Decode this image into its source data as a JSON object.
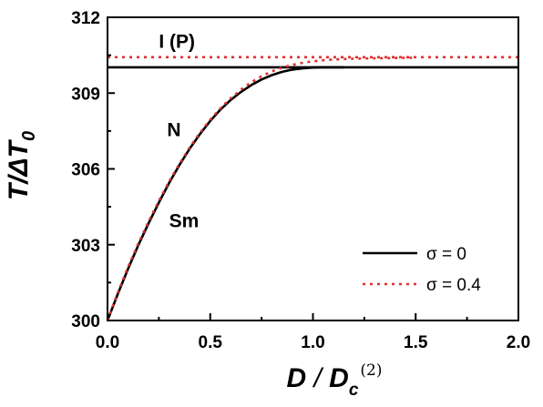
{
  "chart_data": {
    "type": "line",
    "xlabel": {
      "main": "D",
      "sep": " / ",
      "denom": "D",
      "sub": "c",
      "sup": "(2)"
    },
    "ylabel": {
      "main": "T/ΔT",
      "sub": "0"
    },
    "xlim": [
      0,
      2
    ],
    "ylim": [
      300,
      312
    ],
    "x_ticks": [
      0,
      0.5,
      1,
      1.5,
      2
    ],
    "x_tick_labels": [
      "0.0",
      "0.5",
      "1.0",
      "1.5",
      "2.0"
    ],
    "y_ticks": [
      300,
      303,
      306,
      309,
      312
    ],
    "y_tick_labels": [
      "300",
      "303",
      "306",
      "309",
      "312"
    ],
    "grid": false,
    "legend_position": "bottom-right",
    "region_labels": [
      {
        "text": "I (P)",
        "x": 0.25,
        "y": 310.8
      },
      {
        "text": "N",
        "x": 0.29,
        "y": 307.3
      },
      {
        "text": "Sm",
        "x": 0.3,
        "y": 303.7
      }
    ],
    "series": [
      {
        "name": "σ = 0",
        "style": "solid",
        "color": "#000000",
        "x": [
          0,
          0.05,
          0.1,
          0.15,
          0.2,
          0.25,
          0.3,
          0.35,
          0.4,
          0.45,
          0.5,
          0.55,
          0.6,
          0.65,
          0.7,
          0.75,
          0.8,
          0.85,
          0.9,
          0.95,
          1.0,
          1.05,
          1.1,
          1.15
        ],
        "y": [
          300.0,
          301.05,
          302.05,
          302.98,
          303.85,
          304.67,
          305.44,
          306.15,
          306.8,
          307.38,
          307.9,
          308.35,
          308.73,
          309.05,
          309.32,
          309.54,
          309.71,
          309.84,
          309.93,
          309.98,
          310.01,
          310.02,
          310.02,
          310.02
        ]
      },
      {
        "name": "σ = 0.4",
        "style": "dotted",
        "color": "#e03030",
        "x": [
          0,
          0.05,
          0.1,
          0.15,
          0.2,
          0.25,
          0.3,
          0.35,
          0.4,
          0.45,
          0.5,
          0.55,
          0.6,
          0.65,
          0.7,
          0.75,
          0.8,
          0.85,
          0.9,
          0.95,
          1.0,
          1.05,
          1.1,
          1.15,
          1.2,
          1.3,
          1.4,
          1.5
        ],
        "y": [
          300.0,
          301.1,
          302.12,
          303.05,
          303.92,
          304.74,
          305.5,
          306.2,
          306.85,
          307.43,
          307.95,
          308.4,
          308.8,
          309.14,
          309.43,
          309.67,
          309.86,
          310.01,
          310.12,
          310.2,
          310.26,
          310.3,
          310.33,
          310.35,
          310.36,
          310.38,
          310.39,
          310.4
        ]
      }
    ],
    "phase_boundaries": [
      {
        "series": "σ = 0",
        "y": 310.02,
        "x_start": 0,
        "x_end": 2,
        "style": "solid",
        "color": "#000000"
      },
      {
        "series": "σ = 0.4",
        "y": 310.42,
        "x_start": 0,
        "x_end": 2,
        "style": "dotted",
        "color": "#e03030"
      }
    ]
  }
}
